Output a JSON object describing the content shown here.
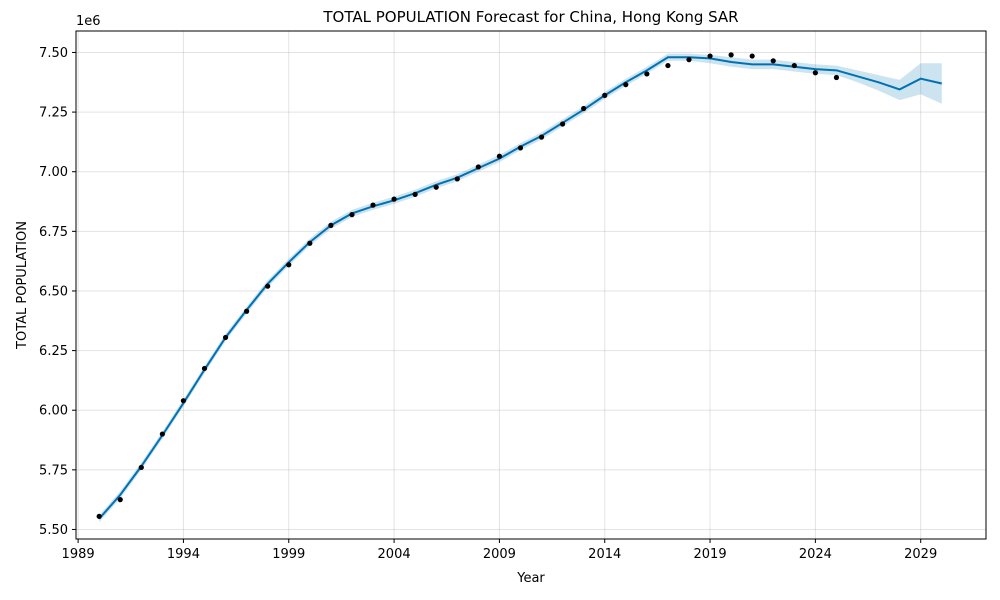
{
  "chart_data": {
    "type": "line",
    "title": "TOTAL POPULATION Forecast for China, Hong Kong SAR",
    "xlabel": "Year",
    "ylabel": "TOTAL POPULATION",
    "y_multiplier_label": "1e6",
    "xlim": [
      1988.9,
      2032.1
    ],
    "ylim": [
      5.46,
      7.59
    ],
    "x_ticks": [
      1989,
      1994,
      1999,
      2004,
      2009,
      2014,
      2019,
      2024,
      2029
    ],
    "y_ticks": [
      5.5,
      5.75,
      6.0,
      6.25,
      6.5,
      6.75,
      7.0,
      7.25,
      7.5
    ],
    "y_tick_labels": [
      "5.50",
      "5.75",
      "6.00",
      "6.25",
      "6.50",
      "6.75",
      "7.00",
      "7.25",
      "7.50"
    ],
    "grid": true,
    "colors": {
      "forecast": "#0072b2",
      "band": "#0072b2",
      "observed": "#000000"
    },
    "observed": {
      "x": [
        1990,
        1991,
        1992,
        1993,
        1994,
        1995,
        1996,
        1997,
        1998,
        1999,
        2000,
        2001,
        2002,
        2003,
        2004,
        2005,
        2006,
        2007,
        2008,
        2009,
        2010,
        2011,
        2012,
        2013,
        2014,
        2015,
        2016,
        2017,
        2018,
        2019,
        2020,
        2021,
        2022,
        2023,
        2024,
        2025
      ],
      "y": [
        5.555,
        5.625,
        5.76,
        5.9,
        6.04,
        6.175,
        6.305,
        6.415,
        6.52,
        6.61,
        6.7,
        6.775,
        6.82,
        6.86,
        6.885,
        6.905,
        6.935,
        6.97,
        7.02,
        7.065,
        7.1,
        7.145,
        7.2,
        7.265,
        7.32,
        7.365,
        7.41,
        7.445,
        7.47,
        7.485,
        7.49,
        7.485,
        7.465,
        7.445,
        7.415,
        7.395
      ]
    },
    "forecast": {
      "x": [
        1990,
        1991,
        1992,
        1993,
        1994,
        1995,
        1996,
        1997,
        1998,
        1999,
        2000,
        2001,
        2002,
        2003,
        2004,
        2005,
        2006,
        2007,
        2008,
        2009,
        2010,
        2011,
        2012,
        2013,
        2014,
        2015,
        2016,
        2017,
        2018,
        2019,
        2020,
        2021,
        2022,
        2023,
        2024,
        2025,
        2026,
        2027,
        2028,
        2029,
        2030
      ],
      "y": [
        5.545,
        5.645,
        5.765,
        5.895,
        6.03,
        6.17,
        6.305,
        6.42,
        6.53,
        6.62,
        6.705,
        6.775,
        6.825,
        6.855,
        6.88,
        6.91,
        6.945,
        6.975,
        7.015,
        7.055,
        7.105,
        7.15,
        7.205,
        7.26,
        7.32,
        7.375,
        7.425,
        7.48,
        7.48,
        7.475,
        7.46,
        7.45,
        7.45,
        7.44,
        7.43,
        7.425,
        7.4,
        7.375,
        7.345,
        7.39,
        7.37
      ],
      "lower": [
        5.53,
        5.63,
        5.75,
        5.88,
        6.015,
        6.155,
        6.29,
        6.405,
        6.515,
        6.605,
        6.69,
        6.76,
        6.81,
        6.84,
        6.865,
        6.895,
        6.93,
        6.96,
        7.0,
        7.04,
        7.09,
        7.135,
        7.19,
        7.245,
        7.305,
        7.36,
        7.41,
        7.465,
        7.465,
        7.455,
        7.44,
        7.43,
        7.43,
        7.42,
        7.41,
        7.405,
        7.375,
        7.34,
        7.3,
        7.325,
        7.285
      ],
      "upper": [
        5.56,
        5.66,
        5.78,
        5.91,
        6.045,
        6.185,
        6.32,
        6.435,
        6.545,
        6.635,
        6.72,
        6.79,
        6.84,
        6.87,
        6.895,
        6.925,
        6.96,
        6.99,
        7.03,
        7.07,
        7.12,
        7.165,
        7.22,
        7.275,
        7.335,
        7.39,
        7.44,
        7.495,
        7.495,
        7.49,
        7.48,
        7.47,
        7.47,
        7.46,
        7.45,
        7.445,
        7.425,
        7.405,
        7.385,
        7.455,
        7.455
      ]
    }
  }
}
